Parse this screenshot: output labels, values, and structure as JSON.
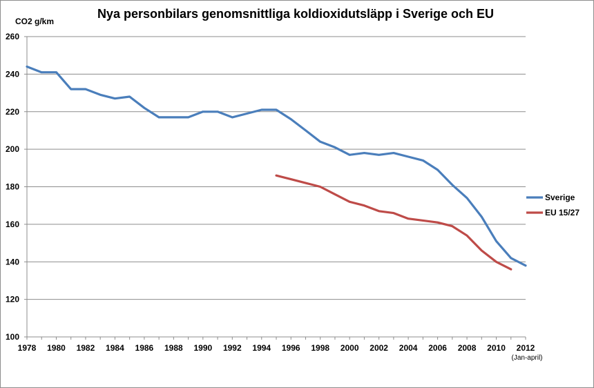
{
  "chart_data": {
    "type": "line",
    "title": "Nya personbilars genomsnittliga koldioxidutsläpp i Sverige och EU",
    "ylabel": "CO2 g/km",
    "xlabel": "",
    "ylim": [
      100,
      260
    ],
    "xlim": [
      1978,
      2012
    ],
    "y_ticks": [
      "100",
      "120",
      "140",
      "160",
      "180",
      "200",
      "220",
      "240",
      "260"
    ],
    "x_ticks": [
      "1978",
      "1980",
      "1982",
      "1984",
      "1986",
      "1988",
      "1990",
      "1992",
      "1994",
      "1996",
      "1998",
      "2000",
      "2002",
      "2004",
      "2006",
      "2008",
      "2010",
      "2012"
    ],
    "x_note": "(Jan-april)",
    "grid": true,
    "legend_position": "right",
    "series": [
      {
        "name": "Sverige",
        "color": "#4a7ebb",
        "x": [
          1978,
          1979,
          1980,
          1981,
          1982,
          1983,
          1984,
          1985,
          1986,
          1987,
          1988,
          1989,
          1990,
          1991,
          1992,
          1993,
          1994,
          1995,
          1996,
          1997,
          1998,
          1999,
          2000,
          2001,
          2002,
          2003,
          2004,
          2005,
          2006,
          2007,
          2008,
          2009,
          2010,
          2011,
          2012
        ],
        "values": [
          244,
          241,
          241,
          232,
          232,
          229,
          227,
          228,
          222,
          217,
          217,
          217,
          220,
          220,
          217,
          219,
          221,
          221,
          216,
          210,
          204,
          201,
          197,
          198,
          197,
          198,
          196,
          194,
          189,
          181,
          174,
          164,
          151,
          142,
          138
        ]
      },
      {
        "name": "EU 15/27",
        "color": "#be4b48",
        "x": [
          1995,
          1996,
          1997,
          1998,
          1999,
          2000,
          2001,
          2002,
          2003,
          2004,
          2005,
          2006,
          2007,
          2008,
          2009,
          2010,
          2011
        ],
        "values": [
          186,
          184,
          182,
          180,
          176,
          172,
          170,
          167,
          166,
          163,
          162,
          161,
          159,
          154,
          146,
          140,
          136
        ]
      }
    ]
  }
}
